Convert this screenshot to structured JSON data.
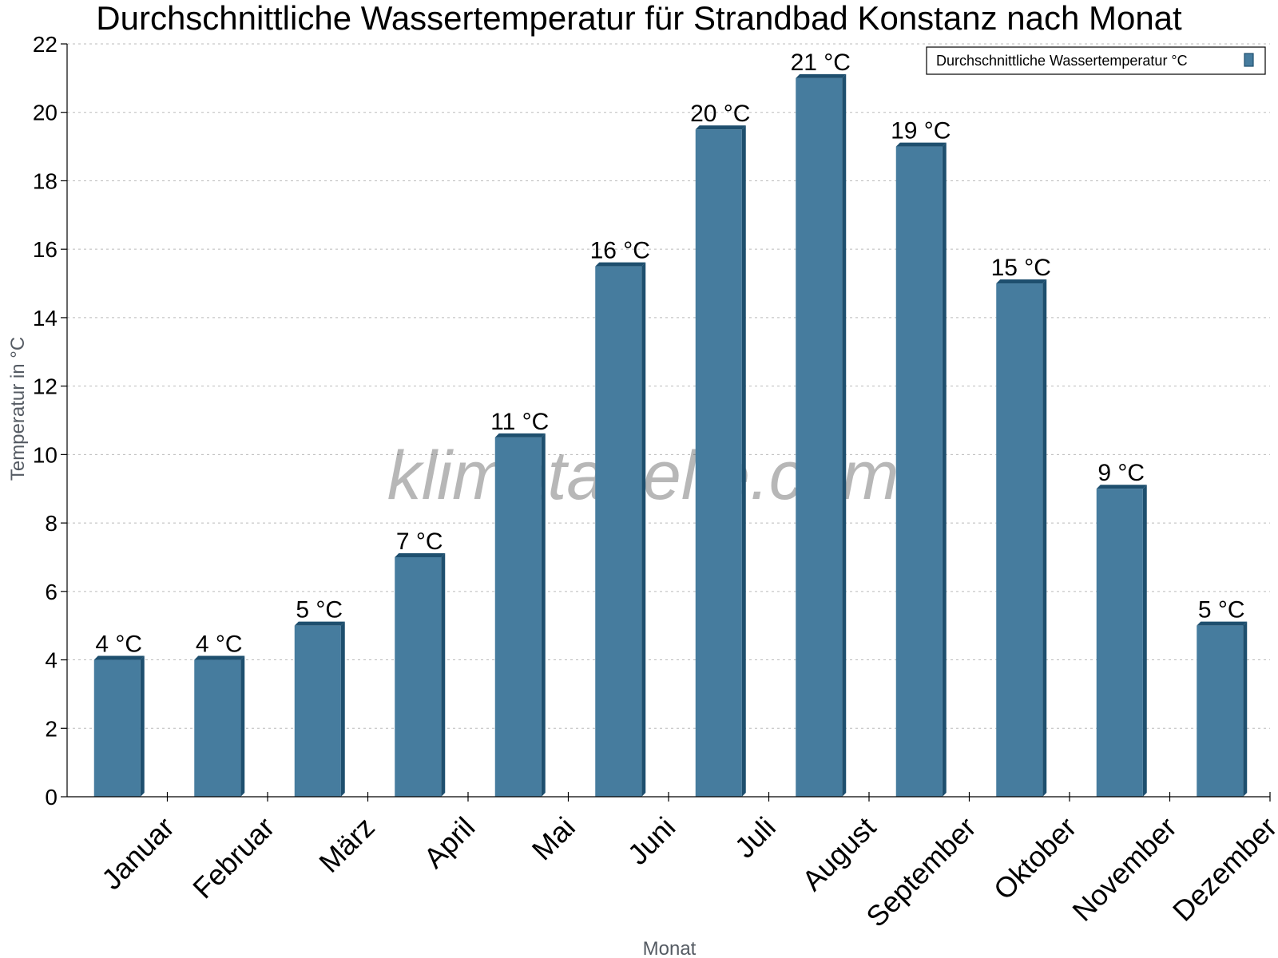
{
  "watermark": "klimatabelle.com",
  "colors": {
    "bar": "#467c9e",
    "bar_dark": "#1e4f6e",
    "grid": "#bbbbbb",
    "axis": "#000000"
  },
  "chart_data": {
    "type": "bar",
    "title": "Durchschnittliche Wassertemperatur für Strandbad Konstanz nach Monat",
    "xlabel": "Monat",
    "ylabel": "Temperatur in °C",
    "ylim": [
      0,
      22
    ],
    "yticks": [
      0,
      2,
      4,
      6,
      8,
      10,
      12,
      14,
      16,
      18,
      20,
      22
    ],
    "grid": true,
    "legend_position": "top-right",
    "categories": [
      "Januar",
      "Februar",
      "März",
      "April",
      "Mai",
      "Juni",
      "Juli",
      "August",
      "September",
      "Oktober",
      "November",
      "Dezember"
    ],
    "series": [
      {
        "name": "Durchschnittliche Wassertemperatur °C",
        "values": [
          4,
          4,
          5,
          7,
          10.5,
          15.5,
          19.5,
          21,
          19,
          15,
          9,
          5
        ],
        "labels": [
          "4 °C",
          "4 °C",
          "5 °C",
          "7 °C",
          "11 °C",
          "16 °C",
          "20 °C",
          "21 °C",
          "19 °C",
          "15 °C",
          "9 °C",
          "5 °C"
        ]
      }
    ]
  }
}
